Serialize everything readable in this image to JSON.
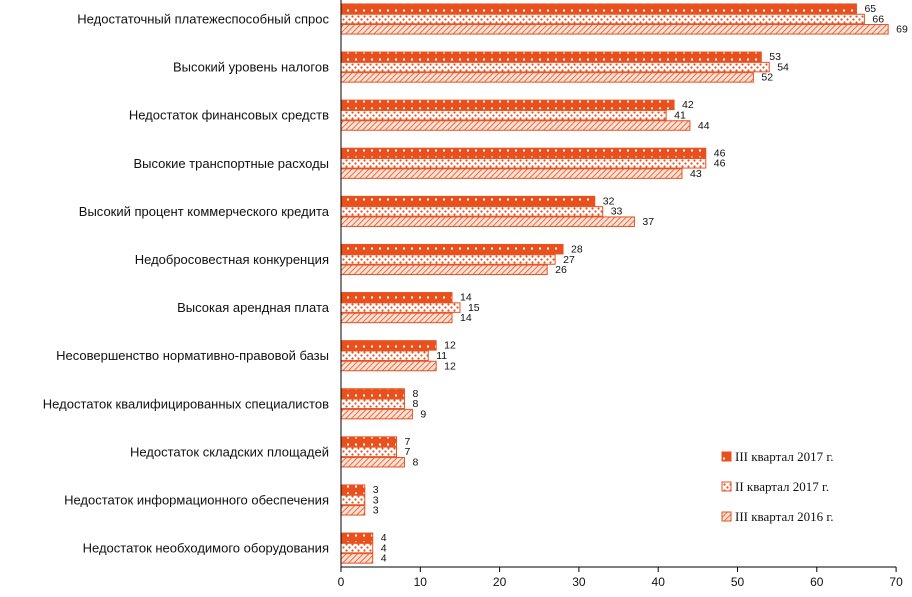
{
  "colors": {
    "accent": "#e8501e",
    "dots": "#ffffff",
    "light_fill": "#fbe2d6",
    "hatch": "#e8501e",
    "axis": "#000000"
  },
  "chart_data": {
    "type": "bar",
    "orientation": "horizontal",
    "categories": [
      "Недостаточный платежеспособный спрос",
      "Высокий уровень налогов",
      "Недостаток финансовых средств",
      "Высокие транспортные расходы",
      "Высокий процент коммерческого кредита",
      "Недобросовестная конкуренция",
      "Высокая арендная плата",
      "Несовершенство нормативно-правовой базы",
      "Недостаток квалифицированных специалистов",
      "Недостаток складских площадей",
      "Недостаток информационного обеспечения",
      "Недостаток необходимого оборудования"
    ],
    "series": [
      {
        "name": "III квартал 2017 г.",
        "pattern": "dots-solid",
        "values": [
          65,
          53,
          42,
          46,
          32,
          28,
          14,
          12,
          8,
          7,
          3,
          4
        ]
      },
      {
        "name": "II квартал 2017 г.",
        "pattern": "dots-light",
        "values": [
          66,
          54,
          41,
          46,
          33,
          27,
          15,
          11,
          8,
          7,
          3,
          4
        ]
      },
      {
        "name": "III квартал 2016 г.",
        "pattern": "hatch",
        "values": [
          69,
          52,
          44,
          43,
          37,
          26,
          14,
          12,
          9,
          8,
          3,
          4
        ]
      }
    ],
    "xlim": [
      0,
      70
    ],
    "xticks": [
      "0",
      "10",
      "20",
      "30",
      "40",
      "50",
      "60",
      "70"
    ],
    "grid": false,
    "legend_position": "bottom-right",
    "title": "",
    "xlabel": "",
    "ylabel": ""
  }
}
